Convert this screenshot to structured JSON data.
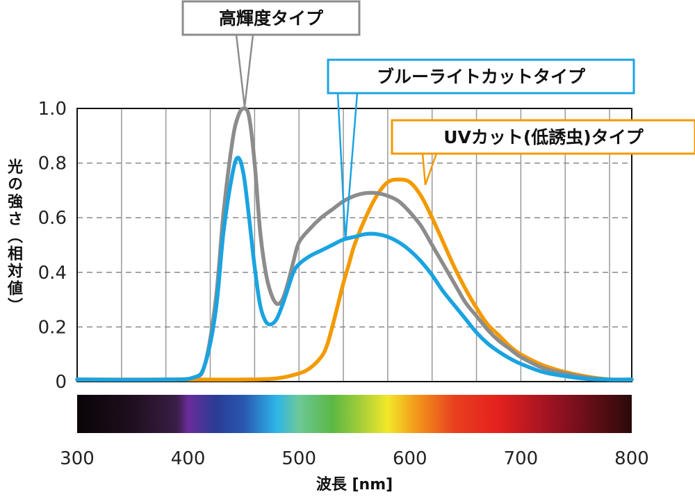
{
  "chart_data": {
    "type": "line",
    "xlabel": "波長 [nm]",
    "ylabel": "光の強さ（相対値）",
    "xlim": [
      300,
      800
    ],
    "ylim": [
      0,
      1.0
    ],
    "x_ticks": [
      "300",
      "400",
      "500",
      "600",
      "700",
      "800"
    ],
    "y_ticks": [
      "0",
      "0.2",
      "0.4",
      "0.6",
      "0.8",
      "1.0"
    ],
    "grid": true,
    "spectrum_bar": true,
    "series": [
      {
        "name": "高輝度タイプ",
        "color": "#8c8c8c",
        "x": [
          300,
          380,
          405,
          415,
          425,
          432,
          440,
          445,
          450,
          455,
          460,
          465,
          470,
          475,
          480,
          485,
          490,
          495,
          500,
          510,
          520,
          530,
          540,
          550,
          560,
          570,
          580,
          590,
          600,
          610,
          620,
          630,
          640,
          650,
          660,
          670,
          680,
          690,
          700,
          720,
          740,
          760,
          780,
          800
        ],
        "y": [
          0.005,
          0.007,
          0.015,
          0.06,
          0.3,
          0.62,
          0.88,
          0.97,
          1.0,
          0.97,
          0.8,
          0.55,
          0.4,
          0.32,
          0.285,
          0.3,
          0.36,
          0.44,
          0.51,
          0.56,
          0.6,
          0.63,
          0.66,
          0.68,
          0.69,
          0.69,
          0.68,
          0.66,
          0.62,
          0.57,
          0.5,
          0.43,
          0.36,
          0.29,
          0.24,
          0.19,
          0.15,
          0.12,
          0.09,
          0.05,
          0.03,
          0.015,
          0.007,
          0.004
        ]
      },
      {
        "name": "ブルーライトカットタイプ",
        "color": "#1aa3e0",
        "x": [
          300,
          380,
          405,
          415,
          425,
          432,
          440,
          445,
          450,
          455,
          460,
          465,
          470,
          475,
          480,
          485,
          490,
          495,
          500,
          510,
          520,
          530,
          540,
          550,
          560,
          570,
          580,
          590,
          600,
          610,
          620,
          630,
          640,
          650,
          660,
          670,
          680,
          690,
          700,
          720,
          740,
          760,
          780,
          800
        ],
        "y": [
          0.005,
          0.007,
          0.015,
          0.06,
          0.26,
          0.55,
          0.76,
          0.82,
          0.76,
          0.6,
          0.42,
          0.28,
          0.22,
          0.21,
          0.23,
          0.28,
          0.34,
          0.4,
          0.43,
          0.46,
          0.48,
          0.5,
          0.52,
          0.53,
          0.54,
          0.54,
          0.53,
          0.51,
          0.48,
          0.44,
          0.39,
          0.33,
          0.28,
          0.23,
          0.18,
          0.14,
          0.11,
          0.085,
          0.065,
          0.035,
          0.02,
          0.01,
          0.005,
          0.003
        ]
      },
      {
        "name": "UVカット(低誘虫)タイプ",
        "color": "#f39a00",
        "x": [
          300,
          400,
          450,
          480,
          500,
          510,
          520,
          525,
          530,
          535,
          540,
          545,
          550,
          560,
          570,
          580,
          590,
          600,
          610,
          620,
          630,
          640,
          650,
          660,
          670,
          680,
          690,
          700,
          720,
          740,
          760,
          780,
          800
        ],
        "y": [
          0.0,
          0.003,
          0.006,
          0.012,
          0.03,
          0.05,
          0.09,
          0.13,
          0.2,
          0.28,
          0.36,
          0.43,
          0.5,
          0.6,
          0.68,
          0.73,
          0.74,
          0.73,
          0.68,
          0.6,
          0.51,
          0.42,
          0.34,
          0.27,
          0.21,
          0.17,
          0.13,
          0.1,
          0.06,
          0.035,
          0.018,
          0.008,
          0.004
        ]
      }
    ]
  }
}
